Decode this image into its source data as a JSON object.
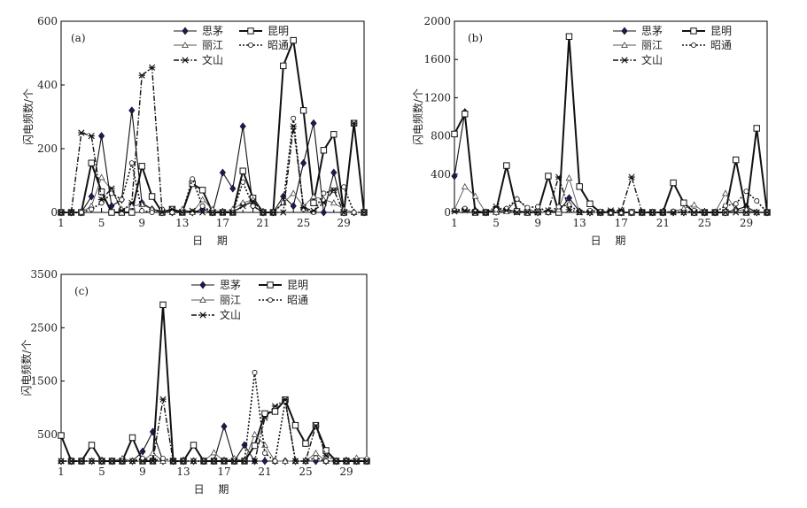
{
  "chart_data": [
    {
      "type": "line",
      "panel_label": "(a)",
      "xlabel": "日 期",
      "ylabel": "闪电频数/个",
      "x": [
        1,
        2,
        3,
        4,
        5,
        6,
        7,
        8,
        9,
        10,
        11,
        12,
        13,
        14,
        15,
        16,
        17,
        18,
        19,
        20,
        21,
        22,
        23,
        24,
        25,
        26,
        27,
        28,
        29,
        30,
        31
      ],
      "xticks": [
        1,
        5,
        9,
        13,
        17,
        21,
        25,
        29
      ],
      "xlim": [
        1,
        31
      ],
      "ylim": [
        0,
        600
      ],
      "yticks": [
        0,
        200,
        400,
        600
      ],
      "grid": false,
      "legend_position": "top-center",
      "series": [
        {
          "name": "思茅",
          "style": "solid-diamond",
          "values": [
            0,
            0,
            0,
            50,
            240,
            20,
            40,
            320,
            30,
            10,
            0,
            0,
            5,
            0,
            10,
            0,
            125,
            75,
            270,
            20,
            0,
            0,
            50,
            20,
            155,
            280,
            0,
            125,
            0,
            0,
            0
          ]
        },
        {
          "name": "昆明",
          "style": "bold-square",
          "values": [
            0,
            0,
            0,
            155,
            65,
            0,
            0,
            0,
            145,
            50,
            0,
            10,
            0,
            90,
            70,
            0,
            0,
            0,
            130,
            45,
            0,
            0,
            460,
            540,
            320,
            30,
            195,
            245,
            0,
            280,
            0
          ]
        },
        {
          "name": "丽江",
          "style": "triangle",
          "values": [
            0,
            0,
            0,
            20,
            110,
            70,
            10,
            20,
            25,
            10,
            5,
            0,
            10,
            0,
            40,
            10,
            0,
            10,
            30,
            40,
            0,
            0,
            30,
            60,
            20,
            50,
            40,
            30,
            10,
            0,
            0
          ]
        },
        {
          "name": "昭通",
          "style": "dotted-circle",
          "values": [
            0,
            0,
            0,
            10,
            30,
            60,
            40,
            155,
            5,
            0,
            10,
            0,
            0,
            105,
            20,
            0,
            0,
            0,
            95,
            20,
            0,
            0,
            30,
            295,
            10,
            0,
            60,
            70,
            80,
            0,
            0
          ]
        },
        {
          "name": "文山",
          "style": "dashdot-star",
          "values": [
            0,
            0,
            250,
            240,
            40,
            75,
            5,
            30,
            430,
            455,
            0,
            10,
            0,
            5,
            0,
            0,
            0,
            0,
            20,
            35,
            0,
            0,
            0,
            270,
            15,
            5,
            30,
            70,
            0,
            280,
            0
          ]
        }
      ]
    },
    {
      "type": "line",
      "panel_label": "(b)",
      "xlabel": "日 期",
      "ylabel": "闪电频数/个",
      "x": [
        1,
        2,
        3,
        4,
        5,
        6,
        7,
        8,
        9,
        10,
        11,
        12,
        13,
        14,
        15,
        16,
        17,
        18,
        19,
        20,
        21,
        22,
        23,
        24,
        25,
        26,
        27,
        28,
        29,
        30,
        31
      ],
      "xticks": [
        1,
        5,
        9,
        13,
        17,
        21,
        25,
        29
      ],
      "xlim": [
        1,
        31
      ],
      "ylim": [
        0,
        2000
      ],
      "yticks": [
        0,
        400,
        800,
        1200,
        1600,
        2000
      ],
      "grid": false,
      "legend_position": "top-center",
      "series": [
        {
          "name": "思茅",
          "style": "solid-diamond",
          "values": [
            380,
            1050,
            20,
            0,
            5,
            30,
            10,
            5,
            0,
            5,
            10,
            150,
            10,
            0,
            0,
            0,
            0,
            0,
            0,
            0,
            0,
            0,
            0,
            0,
            0,
            0,
            0,
            30,
            60,
            0,
            0
          ]
        },
        {
          "name": "昆明",
          "style": "bold-square",
          "values": [
            820,
            1030,
            0,
            0,
            20,
            490,
            10,
            0,
            5,
            380,
            0,
            1840,
            270,
            90,
            0,
            0,
            0,
            0,
            0,
            0,
            0,
            310,
            100,
            0,
            0,
            0,
            0,
            550,
            0,
            880,
            0
          ]
        },
        {
          "name": "丽江",
          "style": "triangle",
          "values": [
            30,
            270,
            170,
            0,
            0,
            10,
            140,
            40,
            0,
            0,
            30,
            360,
            0,
            0,
            0,
            0,
            0,
            0,
            0,
            0,
            0,
            10,
            40,
            80,
            0,
            0,
            200,
            20,
            30,
            0,
            0
          ]
        },
        {
          "name": "昭通",
          "style": "dotted-circle",
          "values": [
            20,
            40,
            10,
            0,
            30,
            40,
            140,
            50,
            60,
            0,
            60,
            80,
            0,
            20,
            10,
            0,
            0,
            0,
            0,
            0,
            0,
            10,
            0,
            20,
            0,
            0,
            70,
            90,
            220,
            120,
            0
          ]
        },
        {
          "name": "文山",
          "style": "dashdot-star",
          "values": [
            10,
            20,
            0,
            0,
            60,
            20,
            0,
            0,
            0,
            20,
            370,
            30,
            0,
            0,
            0,
            20,
            20,
            370,
            0,
            0,
            0,
            0,
            0,
            0,
            0,
            0,
            0,
            0,
            0,
            0,
            0
          ]
        }
      ]
    },
    {
      "type": "line",
      "panel_label": "(c)",
      "xlabel": "日 期",
      "ylabel": "闪电频数/个",
      "x": [
        1,
        2,
        3,
        4,
        5,
        6,
        7,
        8,
        9,
        10,
        11,
        12,
        13,
        14,
        15,
        16,
        17,
        18,
        19,
        20,
        21,
        22,
        23,
        24,
        25,
        26,
        27,
        28,
        29,
        30,
        31
      ],
      "xticks": [
        1,
        5,
        9,
        13,
        17,
        21,
        25,
        29
      ],
      "xlim": [
        1,
        31
      ],
      "ylim": [
        0,
        3500
      ],
      "yticks": [
        500,
        1500,
        2500,
        3500
      ],
      "grid": false,
      "legend_position": "top-center",
      "series": [
        {
          "name": "思茅",
          "style": "solid-diamond",
          "values": [
            0,
            0,
            0,
            0,
            0,
            0,
            0,
            0,
            180,
            550,
            0,
            0,
            0,
            0,
            0,
            0,
            650,
            0,
            300,
            0,
            0,
            0,
            0,
            0,
            0,
            0,
            0,
            0,
            0,
            0,
            0
          ]
        },
        {
          "name": "昆明",
          "style": "bold-square",
          "values": [
            480,
            0,
            0,
            300,
            0,
            0,
            0,
            440,
            0,
            0,
            2930,
            0,
            0,
            300,
            0,
            0,
            0,
            0,
            0,
            290,
            890,
            930,
            1150,
            670,
            330,
            670,
            200,
            0,
            0,
            0,
            0
          ]
        },
        {
          "name": "丽江",
          "style": "triangle",
          "values": [
            0,
            0,
            0,
            0,
            0,
            0,
            50,
            0,
            0,
            150,
            0,
            0,
            0,
            0,
            0,
            160,
            0,
            50,
            0,
            500,
            300,
            0,
            0,
            0,
            0,
            150,
            0,
            0,
            0,
            60,
            60
          ]
        },
        {
          "name": "昭通",
          "style": "dotted-circle",
          "values": [
            0,
            0,
            0,
            0,
            0,
            0,
            0,
            0,
            50,
            0,
            50,
            0,
            0,
            0,
            0,
            0,
            0,
            0,
            0,
            1660,
            150,
            0,
            1130,
            0,
            0,
            60,
            0,
            0,
            0,
            0,
            0
          ]
        },
        {
          "name": "文山",
          "style": "dashdot-star",
          "values": [
            0,
            0,
            0,
            0,
            0,
            0,
            0,
            0,
            0,
            0,
            1160,
            0,
            0,
            0,
            0,
            0,
            0,
            0,
            0,
            0,
            810,
            1030,
            1150,
            0,
            0,
            660,
            100,
            0,
            0,
            0,
            0
          ]
        }
      ]
    }
  ]
}
